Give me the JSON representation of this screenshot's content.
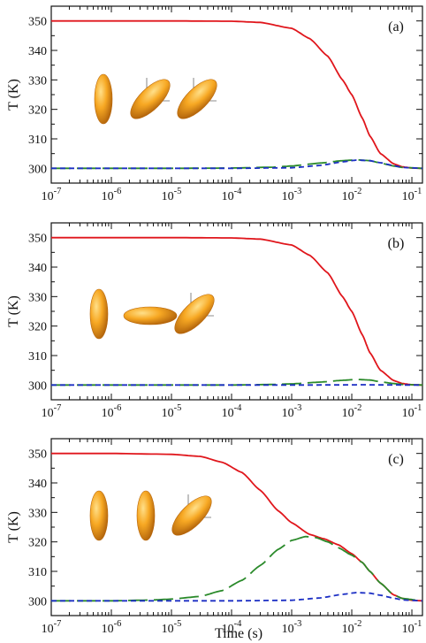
{
  "colors": {
    "solid": "#e0161c",
    "long_dash": "#2a8a2a",
    "short_dash": "#1c2fc4",
    "axis": "#111111",
    "particle_light": "#f7b23a",
    "particle_dark": "#b8660a"
  },
  "figure": {
    "xlabel": "Time (s)"
  },
  "chart_data": [
    {
      "type": "line",
      "panel_label": "(a)",
      "ylabel": "T (K)",
      "xscale": "log",
      "xlim": [
        1e-07,
        0.15
      ],
      "ylim": [
        295,
        355
      ],
      "x_tick_labels": [
        "10^-7",
        "10^-6",
        "10^-5",
        "10^-4",
        "10^-3",
        "10^-2",
        "10^-1"
      ],
      "y_tick_labels": [
        "300",
        "310",
        "320",
        "330",
        "340",
        "350"
      ],
      "x_ticks": [
        1e-07,
        1e-06,
        1e-05,
        0.0001,
        0.001,
        0.01,
        0.1
      ],
      "y_ticks": [
        300,
        310,
        320,
        330,
        340,
        350
      ],
      "series": [
        {
          "style": "solid",
          "x": [
            1e-07,
            1e-06,
            1e-05,
            0.0001,
            0.0003,
            0.001,
            0.002,
            0.004,
            0.007,
            0.01,
            0.015,
            0.02,
            0.03,
            0.05,
            0.07,
            0.1,
            0.15
          ],
          "y": [
            350,
            350,
            350,
            349.9,
            349.5,
            347.5,
            344,
            338,
            330,
            325,
            317,
            311,
            305,
            301.5,
            300.5,
            300.1,
            300
          ]
        },
        {
          "style": "long-dash",
          "x": [
            1e-07,
            1e-05,
            0.0001,
            0.0005,
            0.001,
            0.003,
            0.007,
            0.012,
            0.02,
            0.03,
            0.05,
            0.07,
            0.15
          ],
          "y": [
            300,
            300,
            300.1,
            300.4,
            300.8,
            301.8,
            302.6,
            302.9,
            302.6,
            301.8,
            300.8,
            300.3,
            300
          ]
        },
        {
          "style": "short-dash",
          "x": [
            1e-07,
            0.0001,
            0.001,
            0.003,
            0.007,
            0.012,
            0.02,
            0.03,
            0.05,
            0.07,
            0.15
          ],
          "y": [
            300,
            300,
            300.2,
            301,
            302.2,
            302.8,
            302.6,
            301.9,
            300.9,
            300.3,
            300
          ]
        }
      ],
      "particles": [
        {
          "orientation": "vertical",
          "axes_marker": false
        },
        {
          "orientation": "tilted-45",
          "axes_marker": true
        },
        {
          "orientation": "tilted-45",
          "axes_marker": true
        }
      ]
    },
    {
      "type": "line",
      "panel_label": "(b)",
      "ylabel": "T (K)",
      "xscale": "log",
      "xlim": [
        1e-07,
        0.15
      ],
      "ylim": [
        295,
        355
      ],
      "x_tick_labels": [
        "10^-7",
        "10^-6",
        "10^-5",
        "10^-4",
        "10^-3",
        "10^-2",
        "10^-1"
      ],
      "y_tick_labels": [
        "300",
        "310",
        "320",
        "330",
        "340",
        "350"
      ],
      "x_ticks": [
        1e-07,
        1e-06,
        1e-05,
        0.0001,
        0.001,
        0.01,
        0.1
      ],
      "y_ticks": [
        300,
        310,
        320,
        330,
        340,
        350
      ],
      "series": [
        {
          "style": "solid",
          "x": [
            1e-07,
            1e-06,
            1e-05,
            0.0001,
            0.0003,
            0.001,
            0.002,
            0.004,
            0.007,
            0.01,
            0.015,
            0.02,
            0.03,
            0.05,
            0.07,
            0.1,
            0.15
          ],
          "y": [
            350,
            350,
            350,
            349.9,
            349.5,
            347.5,
            344,
            338,
            330,
            325,
            317,
            311,
            305,
            301.5,
            300.5,
            300.1,
            300
          ]
        },
        {
          "style": "long-dash",
          "x": [
            1e-07,
            0.0001,
            0.0005,
            0.001,
            0.003,
            0.007,
            0.012,
            0.02,
            0.03,
            0.05,
            0.07,
            0.15
          ],
          "y": [
            300,
            300,
            300.2,
            300.4,
            301,
            301.6,
            301.9,
            301.7,
            301.1,
            300.5,
            300.2,
            300
          ]
        },
        {
          "style": "short-dash",
          "x": [
            1e-07,
            0.001,
            0.007,
            0.015,
            0.03,
            0.15
          ],
          "y": [
            300,
            300,
            300.05,
            300.1,
            300.05,
            300
          ]
        }
      ],
      "particles": [
        {
          "orientation": "vertical",
          "axes_marker": false
        },
        {
          "orientation": "horizontal",
          "axes_marker": false
        },
        {
          "orientation": "tilted-45",
          "axes_marker": true
        }
      ]
    },
    {
      "type": "line",
      "panel_label": "(c)",
      "ylabel": "T (K)",
      "xscale": "log",
      "xlim": [
        1e-07,
        0.15
      ],
      "ylim": [
        295,
        355
      ],
      "x_tick_labels": [
        "10^-7",
        "10^-6",
        "10^-5",
        "10^-4",
        "10^-3",
        "10^-2",
        "10^-1"
      ],
      "y_tick_labels": [
        "300",
        "310",
        "320",
        "330",
        "340",
        "350"
      ],
      "x_ticks": [
        1e-07,
        1e-06,
        1e-05,
        0.0001,
        0.001,
        0.01,
        0.1
      ],
      "y_ticks": [
        300,
        310,
        320,
        330,
        340,
        350
      ],
      "series": [
        {
          "style": "solid",
          "x": [
            1e-07,
            1e-06,
            1e-05,
            3e-05,
            7e-05,
            0.00015,
            0.0003,
            0.0006,
            0.001,
            0.002,
            0.0035,
            0.006,
            0.01,
            0.015,
            0.02,
            0.03,
            0.05,
            0.07,
            0.1,
            0.15
          ],
          "y": [
            350,
            350,
            349.7,
            349,
            347,
            343.5,
            337.5,
            330.5,
            326.5,
            322.5,
            321,
            319,
            316,
            313,
            310,
            306,
            302,
            300.8,
            300.2,
            300
          ]
        },
        {
          "style": "long-dash",
          "x": [
            1e-07,
            1e-06,
            5e-06,
            1e-05,
            3e-05,
            7e-05,
            0.00015,
            0.0003,
            0.0006,
            0.001,
            0.0017,
            0.0025,
            0.004,
            0.006,
            0.01,
            0.015,
            0.02,
            0.03,
            0.05,
            0.07,
            0.15
          ],
          "y": [
            300,
            300,
            300.3,
            300.6,
            301.5,
            303.5,
            307,
            312,
            317.5,
            320.5,
            321.8,
            321.5,
            320,
            318,
            315.5,
            313,
            310,
            306,
            302,
            300.8,
            300
          ]
        },
        {
          "style": "short-dash",
          "x": [
            1e-07,
            0.0001,
            0.001,
            0.003,
            0.007,
            0.012,
            0.02,
            0.03,
            0.05,
            0.07,
            0.15
          ],
          "y": [
            300,
            300,
            300.2,
            301,
            302.2,
            302.8,
            302.6,
            301.9,
            300.9,
            300.3,
            300
          ]
        }
      ],
      "particles": [
        {
          "orientation": "vertical",
          "axes_marker": false
        },
        {
          "orientation": "vertical",
          "axes_marker": false
        },
        {
          "orientation": "tilted-45",
          "axes_marker": true
        }
      ]
    }
  ]
}
